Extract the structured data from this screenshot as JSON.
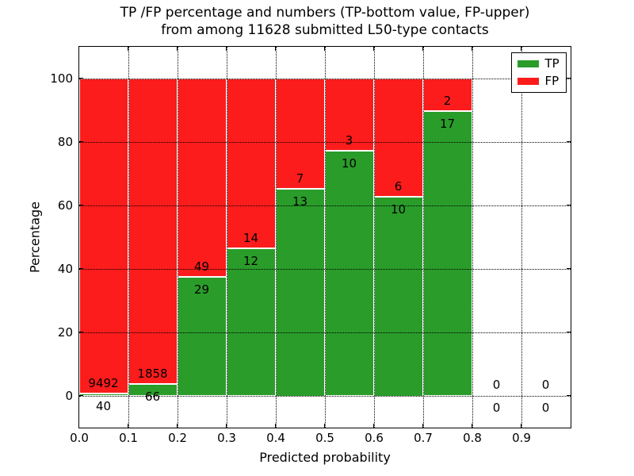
{
  "chart_data": {
    "type": "bar",
    "stacked": true,
    "normalized_to_percent": true,
    "title_line1": "TP /FP percentage and numbers (TP-bottom value, FP-upper)",
    "title_line2": "from among 11628 submitted L50-type contacts",
    "xlabel": "Predicted probability",
    "ylabel": "Percentage",
    "xlim": [
      0.0,
      1.0
    ],
    "ylim": [
      -10,
      110
    ],
    "xticks": [
      0.0,
      0.1,
      0.2,
      0.3,
      0.4,
      0.5,
      0.6,
      0.7,
      0.8,
      0.9
    ],
    "yticks": [
      0,
      20,
      40,
      60,
      80,
      100
    ],
    "grid": "dotted black, both axes, drawn over bars",
    "bin_width": 0.1,
    "bin_edges": [
      0.0,
      0.1,
      0.2,
      0.3,
      0.4,
      0.5,
      0.6,
      0.7,
      0.8,
      0.9,
      1.0
    ],
    "series": [
      {
        "name": "TP",
        "color": "#2a9c2a",
        "counts": [
          40,
          66,
          29,
          12,
          13,
          10,
          10,
          17,
          0,
          0
        ]
      },
      {
        "name": "FP",
        "color": "#fc1c1c",
        "counts": [
          9492,
          1858,
          49,
          14,
          7,
          3,
          6,
          2,
          0,
          0
        ]
      }
    ],
    "tp_percent_by_bin": [
      0.42,
      3.43,
      37.18,
      46.15,
      65.0,
      76.92,
      62.5,
      89.47,
      0,
      0
    ],
    "bar_edge_color": "#ffffff",
    "legend_position": "upper right"
  }
}
